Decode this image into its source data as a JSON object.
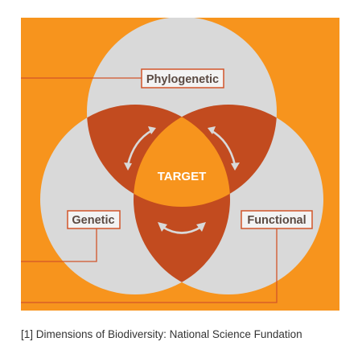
{
  "colors": {
    "background": "#F7941D",
    "circle": "#D9D9D9",
    "overlap": "#C24B1F",
    "center": "#F7941D",
    "label_border": "#D2552A",
    "label_text": "#5B4A42",
    "arrow": "#D9D9D9",
    "center_text": "#FFFFFF"
  },
  "labels": {
    "top": "Phylogenetic",
    "left": "Genetic",
    "right": "Functional",
    "center": "TARGET"
  },
  "caption": "[1] Dimensions of Biodiversity: National Science Fundation"
}
